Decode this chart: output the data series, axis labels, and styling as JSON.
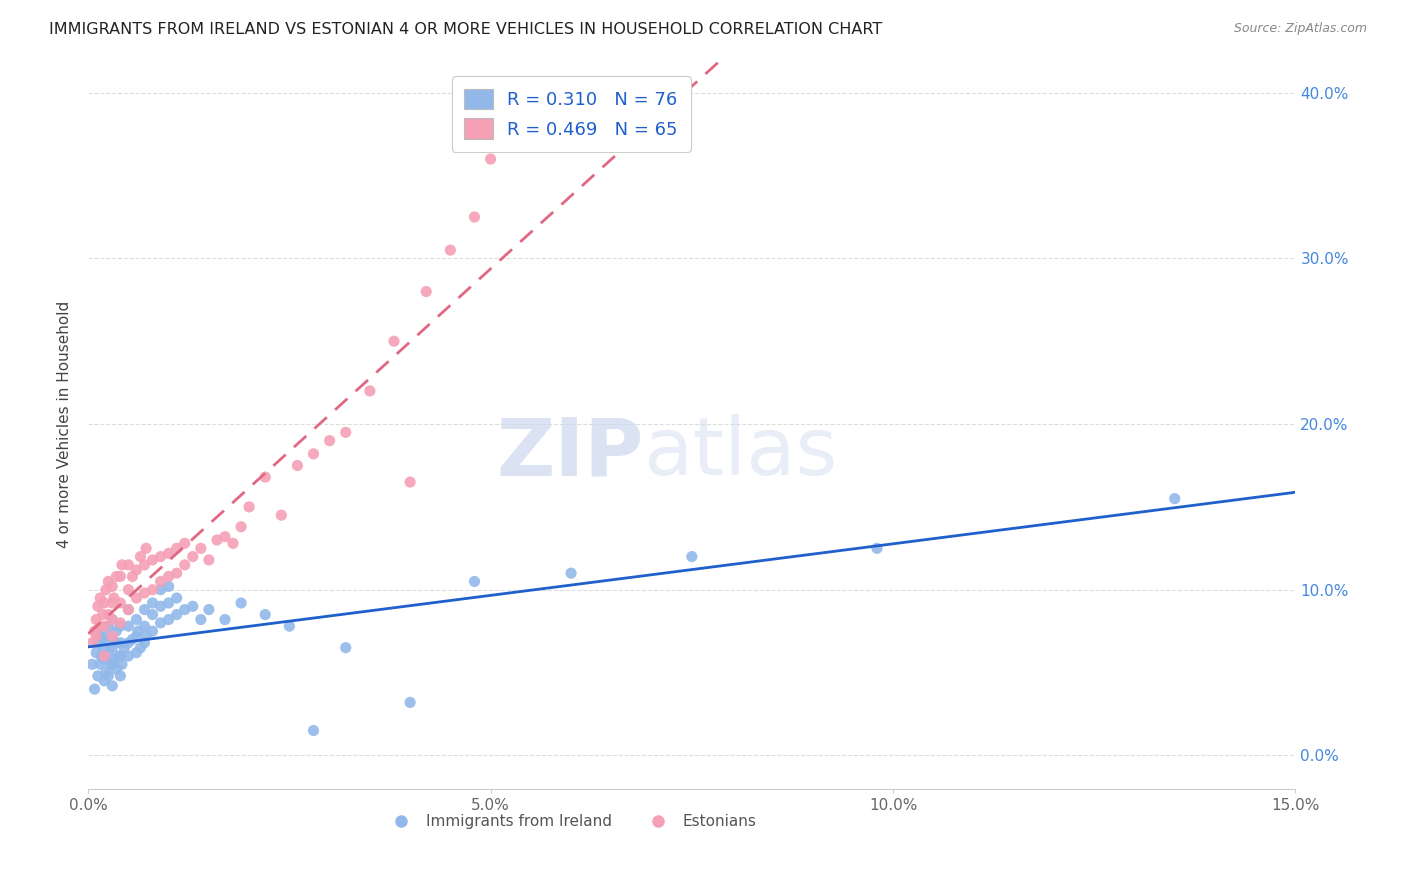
{
  "title": "IMMIGRANTS FROM IRELAND VS ESTONIAN 4 OR MORE VEHICLES IN HOUSEHOLD CORRELATION CHART",
  "source": "Source: ZipAtlas.com",
  "ylabel": "4 or more Vehicles in Household",
  "xlim": [
    0.0,
    0.15
  ],
  "ylim": [
    -0.02,
    0.42
  ],
  "xticks": [
    0.0,
    0.05,
    0.1,
    0.15
  ],
  "yticks": [
    0.0,
    0.1,
    0.2,
    0.3,
    0.4
  ],
  "xticklabels": [
    "0.0%",
    "5.0%",
    "10.0%",
    "15.0%"
  ],
  "yticklabels_right": [
    "0.0%",
    "10.0%",
    "20.0%",
    "30.0%",
    "40.0%"
  ],
  "ireland_R": "0.310",
  "ireland_N": "76",
  "estonian_R": "0.469",
  "estonian_N": "65",
  "ireland_color": "#92b8ea",
  "estonian_color": "#f5a0b5",
  "ireland_line_color": "#2060cc",
  "estonian_line_color": "#e06882",
  "legend_label_ireland": "Immigrants from Ireland",
  "legend_label_estonian": "Estonians",
  "watermark_zip": "ZIP",
  "watermark_atlas": "atlas",
  "ireland_x": [
    0.0005,
    0.0008,
    0.001,
    0.001,
    0.0012,
    0.0013,
    0.0015,
    0.0015,
    0.0016,
    0.0018,
    0.002,
    0.002,
    0.002,
    0.0022,
    0.0022,
    0.0025,
    0.0025,
    0.0025,
    0.0028,
    0.003,
    0.003,
    0.003,
    0.003,
    0.003,
    0.0032,
    0.0033,
    0.0035,
    0.0035,
    0.0038,
    0.004,
    0.004,
    0.004,
    0.004,
    0.0042,
    0.0045,
    0.005,
    0.005,
    0.005,
    0.005,
    0.0055,
    0.006,
    0.006,
    0.006,
    0.0062,
    0.0065,
    0.007,
    0.007,
    0.007,
    0.0072,
    0.008,
    0.008,
    0.008,
    0.009,
    0.009,
    0.009,
    0.01,
    0.01,
    0.01,
    0.011,
    0.011,
    0.012,
    0.013,
    0.014,
    0.015,
    0.017,
    0.019,
    0.022,
    0.025,
    0.028,
    0.032,
    0.04,
    0.048,
    0.06,
    0.075,
    0.098,
    0.135
  ],
  "ireland_y": [
    0.055,
    0.04,
    0.062,
    0.075,
    0.048,
    0.068,
    0.055,
    0.072,
    0.06,
    0.07,
    0.045,
    0.058,
    0.065,
    0.05,
    0.072,
    0.048,
    0.062,
    0.078,
    0.055,
    0.042,
    0.055,
    0.065,
    0.07,
    0.082,
    0.058,
    0.068,
    0.052,
    0.075,
    0.06,
    0.048,
    0.06,
    0.068,
    0.078,
    0.055,
    0.065,
    0.06,
    0.068,
    0.078,
    0.088,
    0.07,
    0.062,
    0.072,
    0.082,
    0.075,
    0.065,
    0.068,
    0.078,
    0.088,
    0.072,
    0.075,
    0.085,
    0.092,
    0.08,
    0.09,
    0.1,
    0.082,
    0.092,
    0.102,
    0.085,
    0.095,
    0.088,
    0.09,
    0.082,
    0.088,
    0.082,
    0.092,
    0.085,
    0.078,
    0.015,
    0.065,
    0.032,
    0.105,
    0.11,
    0.12,
    0.125,
    0.155
  ],
  "estonian_x": [
    0.0005,
    0.0008,
    0.001,
    0.001,
    0.0012,
    0.0015,
    0.0015,
    0.0018,
    0.002,
    0.002,
    0.002,
    0.0022,
    0.0025,
    0.0025,
    0.003,
    0.003,
    0.003,
    0.003,
    0.0032,
    0.0035,
    0.004,
    0.004,
    0.004,
    0.0042,
    0.005,
    0.005,
    0.005,
    0.0055,
    0.006,
    0.006,
    0.0065,
    0.007,
    0.007,
    0.0072,
    0.008,
    0.008,
    0.009,
    0.009,
    0.01,
    0.01,
    0.011,
    0.011,
    0.012,
    0.012,
    0.013,
    0.014,
    0.015,
    0.016,
    0.017,
    0.018,
    0.019,
    0.02,
    0.022,
    0.024,
    0.026,
    0.028,
    0.03,
    0.032,
    0.035,
    0.038,
    0.04,
    0.042,
    0.045,
    0.048,
    0.05
  ],
  "estonian_y": [
    0.068,
    0.075,
    0.072,
    0.082,
    0.09,
    0.078,
    0.095,
    0.085,
    0.06,
    0.078,
    0.092,
    0.1,
    0.085,
    0.105,
    0.072,
    0.082,
    0.092,
    0.102,
    0.095,
    0.108,
    0.08,
    0.092,
    0.108,
    0.115,
    0.088,
    0.1,
    0.115,
    0.108,
    0.095,
    0.112,
    0.12,
    0.098,
    0.115,
    0.125,
    0.1,
    0.118,
    0.105,
    0.12,
    0.108,
    0.122,
    0.11,
    0.125,
    0.115,
    0.128,
    0.12,
    0.125,
    0.118,
    0.13,
    0.132,
    0.128,
    0.138,
    0.15,
    0.168,
    0.145,
    0.175,
    0.182,
    0.19,
    0.195,
    0.22,
    0.25,
    0.165,
    0.28,
    0.305,
    0.325,
    0.36
  ]
}
